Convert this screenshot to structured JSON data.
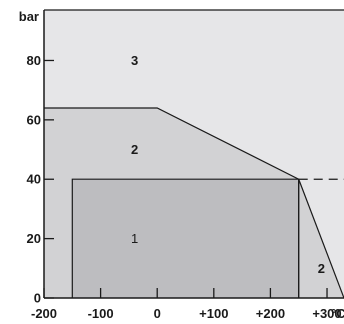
{
  "chart_data": {
    "type": "area",
    "xlabel": "°C",
    "ylabel": "bar",
    "xlim": [
      -200,
      330
    ],
    "ylim": [
      0,
      97
    ],
    "x_ticks": [
      -200,
      -100,
      0,
      100,
      200,
      300
    ],
    "x_tick_labels": [
      "-200",
      "-100",
      "0",
      "+100",
      "+200",
      "+300"
    ],
    "y_ticks": [
      0,
      20,
      40,
      60,
      80
    ],
    "y_tick_labels": [
      "0",
      "20",
      "40",
      "60",
      "80"
    ],
    "regions": [
      {
        "label": "3",
        "text_at": [
          -40,
          80
        ],
        "polygon": [
          [
            -200,
            0
          ],
          [
            330,
            0
          ],
          [
            330,
            97
          ],
          [
            -200,
            97
          ]
        ]
      },
      {
        "label": "2",
        "text_at": [
          -40,
          50
        ],
        "polygon": [
          [
            -200,
            0
          ],
          [
            -200,
            64
          ],
          [
            0,
            64
          ],
          [
            250,
            40
          ],
          [
            250,
            0
          ]
        ]
      },
      {
        "label": "2",
        "text_at": [
          290,
          10
        ],
        "polygon": [
          [
            250,
            0
          ],
          [
            250,
            40
          ],
          [
            330,
            0
          ]
        ]
      },
      {
        "label": "1",
        "text_at": [
          -40,
          20
        ],
        "polygon": [
          [
            -150,
            0
          ],
          [
            -150,
            40
          ],
          [
            250,
            40
          ],
          [
            250,
            0
          ]
        ]
      }
    ],
    "reference_line": {
      "y": 40,
      "style": "dashed",
      "x_start": 250,
      "x_end": 330
    },
    "colors": {
      "region_3": "#e6e6e8",
      "region_2": "#d2d2d4",
      "region_1": "#bdbdc0",
      "lines": "#1a1a1a"
    }
  }
}
